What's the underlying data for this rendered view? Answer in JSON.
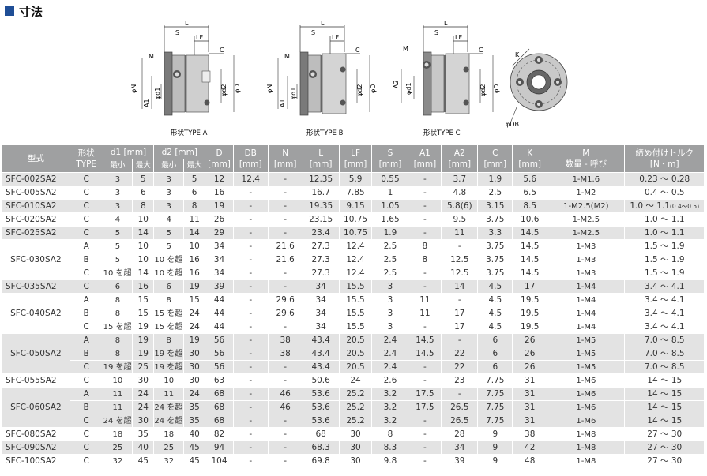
{
  "heading": "寸法",
  "diagram_labels": {
    "L": "L",
    "S": "S",
    "LF": "LF",
    "C": "C",
    "M": "M",
    "N": "φN",
    "A1": "A1",
    "d1": "φd1",
    "d2": "φd2",
    "D": "φD",
    "A2": "A2",
    "K": "K",
    "DB": "φDB"
  },
  "captions": [
    "形状TYPE A",
    "形状TYPE B",
    "形状TYPE C"
  ],
  "header": {
    "model": "型式",
    "type1": "形状",
    "type2": "TYPE",
    "d1": "d1 [mm]",
    "d2": "d2 [mm]",
    "min": "最小",
    "max": "最大",
    "D": "D",
    "DB": "DB",
    "N": "N",
    "L": "L",
    "LF": "LF",
    "S": "S",
    "A1": "A1",
    "A2": "A2",
    "C": "C",
    "K": "K",
    "unit": "[mm]",
    "M1": "M",
    "M2": "数量 - 呼び",
    "T1": "締め付けトルク",
    "T2": "[N・m]"
  },
  "rows": [
    {
      "model": "SFC-002SA2",
      "type": "C",
      "d1min": "3",
      "d1max": "5",
      "d2min": "3",
      "d2max": "5",
      "D": "12",
      "DB": "12.4",
      "N": "-",
      "L": "12.35",
      "LF": "5.9",
      "S": "0.55",
      "A1": "-",
      "A2": "3.7",
      "C": "1.9",
      "K": "5.6",
      "M": "1-M1.6",
      "T": "0.23 ～ 0.28"
    },
    {
      "model": "SFC-005SA2",
      "type": "C",
      "d1min": "3",
      "d1max": "6",
      "d2min": "3",
      "d2max": "6",
      "D": "16",
      "DB": "-",
      "N": "-",
      "L": "16.7",
      "LF": "7.85",
      "S": "1",
      "A1": "-",
      "A2": "4.8",
      "C": "2.5",
      "K": "6.5",
      "M": "1-M2",
      "T": "0.4 ～ 0.5"
    },
    {
      "model": "SFC-010SA2",
      "type": "C",
      "d1min": "3",
      "d1max": "8",
      "d2min": "3",
      "d2max": "8",
      "D": "19",
      "DB": "-",
      "N": "-",
      "L": "19.35",
      "LF": "9.15",
      "S": "1.05",
      "A1": "-",
      "A2": "5.8(6)",
      "C": "3.15",
      "K": "8.5",
      "M": "1-M2.5(M2)",
      "T": "1.0 ～ 1.1",
      "Tsmall": "(0.4～0.5)"
    },
    {
      "model": "SFC-020SA2",
      "type": "C",
      "d1min": "4",
      "d1max": "10",
      "d2min": "4",
      "d2max": "11",
      "D": "26",
      "DB": "-",
      "N": "-",
      "L": "23.15",
      "LF": "10.75",
      "S": "1.65",
      "A1": "-",
      "A2": "9.5",
      "C": "3.75",
      "K": "10.6",
      "M": "1-M2.5",
      "T": "1.0 ～ 1.1"
    },
    {
      "model": "SFC-025SA2",
      "type": "C",
      "d1min": "5",
      "d1max": "14",
      "d2min": "5",
      "d2max": "14",
      "D": "29",
      "DB": "-",
      "N": "-",
      "L": "23.4",
      "LF": "10.75",
      "S": "1.9",
      "A1": "-",
      "A2": "11",
      "C": "3.3",
      "K": "14.5",
      "M": "1-M2.5",
      "T": "1.0 ～ 1.1"
    },
    {
      "model": "SFC-030SA2",
      "type": "A",
      "d1min": "5",
      "d1max": "10",
      "d2min": "5",
      "d2max": "10",
      "D": "34",
      "DB": "-",
      "N": "21.6",
      "L": "27.3",
      "LF": "12.4",
      "S": "2.5",
      "A1": "8",
      "A2": "-",
      "C": "3.75",
      "K": "14.5",
      "M": "1-M3",
      "T": "1.5 ～ 1.9"
    },
    {
      "model": "",
      "type": "B",
      "d1min": "5",
      "d1max": "10",
      "d2min": "10 を超え",
      "d2max": "16",
      "D": "34",
      "DB": "-",
      "N": "21.6",
      "L": "27.3",
      "LF": "12.4",
      "S": "2.5",
      "A1": "8",
      "A2": "12.5",
      "C": "3.75",
      "K": "14.5",
      "M": "1-M3",
      "T": "1.5 ～ 1.9"
    },
    {
      "model": "",
      "type": "C",
      "d1min": "10 を超え",
      "d1max": "14",
      "d2min": "10 を超え",
      "d2max": "16",
      "D": "34",
      "DB": "-",
      "N": "-",
      "L": "27.3",
      "LF": "12.4",
      "S": "2.5",
      "A1": "-",
      "A2": "12.5",
      "C": "3.75",
      "K": "14.5",
      "M": "1-M3",
      "T": "1.5 ～ 1.9"
    },
    {
      "model": "SFC-035SA2",
      "type": "C",
      "d1min": "6",
      "d1max": "16",
      "d2min": "6",
      "d2max": "19",
      "D": "39",
      "DB": "-",
      "N": "-",
      "L": "34",
      "LF": "15.5",
      "S": "3",
      "A1": "-",
      "A2": "14",
      "C": "4.5",
      "K": "17",
      "M": "1-M4",
      "T": "3.4 ～ 4.1"
    },
    {
      "model": "SFC-040SA2",
      "type": "A",
      "d1min": "8",
      "d1max": "15",
      "d2min": "8",
      "d2max": "15",
      "D": "44",
      "DB": "-",
      "N": "29.6",
      "L": "34",
      "LF": "15.5",
      "S": "3",
      "A1": "11",
      "A2": "-",
      "C": "4.5",
      "K": "19.5",
      "M": "1-M4",
      "T": "3.4 ～ 4.1"
    },
    {
      "model": "",
      "type": "B",
      "d1min": "8",
      "d1max": "15",
      "d2min": "15 を超え",
      "d2max": "24",
      "D": "44",
      "DB": "-",
      "N": "29.6",
      "L": "34",
      "LF": "15.5",
      "S": "3",
      "A1": "11",
      "A2": "17",
      "C": "4.5",
      "K": "19.5",
      "M": "1-M4",
      "T": "3.4 ～ 4.1"
    },
    {
      "model": "",
      "type": "C",
      "d1min": "15 を超え",
      "d1max": "19",
      "d2min": "15 を超え",
      "d2max": "24",
      "D": "44",
      "DB": "-",
      "N": "-",
      "L": "34",
      "LF": "15.5",
      "S": "3",
      "A1": "-",
      "A2": "17",
      "C": "4.5",
      "K": "19.5",
      "M": "1-M4",
      "T": "3.4 ～ 4.1"
    },
    {
      "model": "SFC-050SA2",
      "type": "A",
      "d1min": "8",
      "d1max": "19",
      "d2min": "8",
      "d2max": "19",
      "D": "56",
      "DB": "-",
      "N": "38",
      "L": "43.4",
      "LF": "20.5",
      "S": "2.4",
      "A1": "14.5",
      "A2": "-",
      "C": "6",
      "K": "26",
      "M": "1-M5",
      "T": "7.0 ～ 8.5"
    },
    {
      "model": "",
      "type": "B",
      "d1min": "8",
      "d1max": "19",
      "d2min": "19 を超え",
      "d2max": "30",
      "D": "56",
      "DB": "-",
      "N": "38",
      "L": "43.4",
      "LF": "20.5",
      "S": "2.4",
      "A1": "14.5",
      "A2": "22",
      "C": "6",
      "K": "26",
      "M": "1-M5",
      "T": "7.0 ～ 8.5"
    },
    {
      "model": "",
      "type": "C",
      "d1min": "19 を超え",
      "d1max": "25",
      "d2min": "19 を超え",
      "d2max": "30",
      "D": "56",
      "DB": "-",
      "N": "-",
      "L": "43.4",
      "LF": "20.5",
      "S": "2.4",
      "A1": "-",
      "A2": "22",
      "C": "6",
      "K": "26",
      "M": "1-M5",
      "T": "7.0 ～ 8.5"
    },
    {
      "model": "SFC-055SA2",
      "type": "C",
      "d1min": "10",
      "d1max": "30",
      "d2min": "10",
      "d2max": "30",
      "D": "63",
      "DB": "-",
      "N": "-",
      "L": "50.6",
      "LF": "24",
      "S": "2.6",
      "A1": "-",
      "A2": "23",
      "C": "7.75",
      "K": "31",
      "M": "1-M6",
      "T": "14 ～ 15"
    },
    {
      "model": "SFC-060SA2",
      "type": "A",
      "d1min": "11",
      "d1max": "24",
      "d2min": "11",
      "d2max": "24",
      "D": "68",
      "DB": "-",
      "N": "46",
      "L": "53.6",
      "LF": "25.2",
      "S": "3.2",
      "A1": "17.5",
      "A2": "-",
      "C": "7.75",
      "K": "31",
      "M": "1-M6",
      "T": "14 ～ 15"
    },
    {
      "model": "",
      "type": "B",
      "d1min": "11",
      "d1max": "24",
      "d2min": "24 を超え",
      "d2max": "35",
      "D": "68",
      "DB": "-",
      "N": "46",
      "L": "53.6",
      "LF": "25.2",
      "S": "3.2",
      "A1": "17.5",
      "A2": "26.5",
      "C": "7.75",
      "K": "31",
      "M": "1-M6",
      "T": "14 ～ 15"
    },
    {
      "model": "",
      "type": "C",
      "d1min": "24 を超え",
      "d1max": "30",
      "d2min": "24 を超え",
      "d2max": "35",
      "D": "68",
      "DB": "-",
      "N": "-",
      "L": "53.6",
      "LF": "25.2",
      "S": "3.2",
      "A1": "-",
      "A2": "26.5",
      "C": "7.75",
      "K": "31",
      "M": "1-M6",
      "T": "14 ～ 15"
    },
    {
      "model": "SFC-080SA2",
      "type": "C",
      "d1min": "18",
      "d1max": "35",
      "d2min": "18",
      "d2max": "40",
      "D": "82",
      "DB": "-",
      "N": "-",
      "L": "68",
      "LF": "30",
      "S": "8",
      "A1": "-",
      "A2": "28",
      "C": "9",
      "K": "38",
      "M": "1-M8",
      "T": "27 ～ 30"
    },
    {
      "model": "SFC-090SA2",
      "type": "C",
      "d1min": "25",
      "d1max": "40",
      "d2min": "25",
      "d2max": "45",
      "D": "94",
      "DB": "-",
      "N": "-",
      "L": "68.3",
      "LF": "30",
      "S": "8.3",
      "A1": "-",
      "A2": "34",
      "C": "9",
      "K": "42",
      "M": "1-M8",
      "T": "27 ～ 30"
    },
    {
      "model": "SFC-100SA2",
      "type": "C",
      "d1min": "32",
      "d1max": "45",
      "d2min": "32",
      "d2max": "45",
      "D": "104",
      "DB": "-",
      "N": "-",
      "L": "69.8",
      "LF": "30",
      "S": "9.8",
      "A1": "-",
      "A2": "39",
      "C": "9",
      "K": "48",
      "M": "1-M8",
      "T": "27 ～ 30"
    }
  ]
}
